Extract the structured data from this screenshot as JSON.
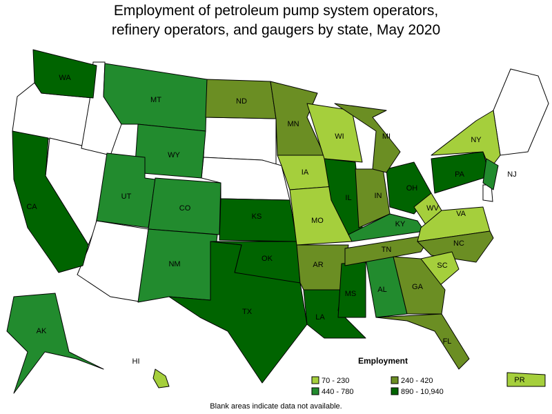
{
  "title": "Employment of petroleum pump system operators, refinery operators, and gaugers by state, May 2020",
  "legend": {
    "title": "Employment",
    "items": [
      {
        "label": "70 - 230",
        "color": "#a5cf3c"
      },
      {
        "label": "240 - 420",
        "color": "#6b8e23"
      },
      {
        "label": "440 - 780",
        "color": "#228b2e"
      },
      {
        "label": "890 - 10,940",
        "color": "#006400"
      }
    ]
  },
  "states": [
    {
      "label": "WA",
      "color": "#006400"
    },
    {
      "label": "CA",
      "color": "#006400"
    },
    {
      "label": "MT",
      "color": "#228b2e"
    },
    {
      "label": "WY",
      "color": "#228b2e"
    },
    {
      "label": "UT",
      "color": "#228b2e"
    },
    {
      "label": "CO",
      "color": "#228b2e"
    },
    {
      "label": "NM",
      "color": "#228b2e"
    },
    {
      "label": "ND",
      "color": "#6b8e23"
    },
    {
      "label": "KS",
      "color": "#006400"
    },
    {
      "label": "OK",
      "color": "#006400"
    },
    {
      "label": "TX",
      "color": "#006400"
    },
    {
      "label": "MN",
      "color": "#6b8e23"
    },
    {
      "label": "IA",
      "color": "#a5cf3c"
    },
    {
      "label": "MO",
      "color": "#a5cf3c"
    },
    {
      "label": "AR",
      "color": "#6b8e23"
    },
    {
      "label": "LA",
      "color": "#006400"
    },
    {
      "label": "WI",
      "color": "#a5cf3c"
    },
    {
      "label": "IL",
      "color": "#006400"
    },
    {
      "label": "MS",
      "color": "#006400"
    },
    {
      "label": "AL",
      "color": "#228b2e"
    },
    {
      "label": "TN",
      "color": "#6b8e23"
    },
    {
      "label": "KY",
      "color": "#228b2e"
    },
    {
      "label": "IN",
      "color": "#6b8e23"
    },
    {
      "label": "OH",
      "color": "#006400"
    },
    {
      "label": "MI",
      "color": "#6b8e23"
    },
    {
      "label": "WV",
      "color": "#a5cf3c"
    },
    {
      "label": "VA",
      "color": "#a5cf3c"
    },
    {
      "label": "NC",
      "color": "#6b8e23"
    },
    {
      "label": "SC",
      "color": "#a5cf3c"
    },
    {
      "label": "GA",
      "color": "#6b8e23"
    },
    {
      "label": "FL",
      "color": "#6b8e23"
    },
    {
      "label": "PA",
      "color": "#006400"
    },
    {
      "label": "NY",
      "color": "#a5cf3c"
    },
    {
      "label": "NJ",
      "color": "#228b2e"
    },
    {
      "label": "AK",
      "color": "#228b2e"
    },
    {
      "label": "HI",
      "color": "#a5cf3c"
    },
    {
      "label": "PR",
      "color": "#a5cf3c"
    }
  ],
  "note": "Blank areas indicate data not available."
}
